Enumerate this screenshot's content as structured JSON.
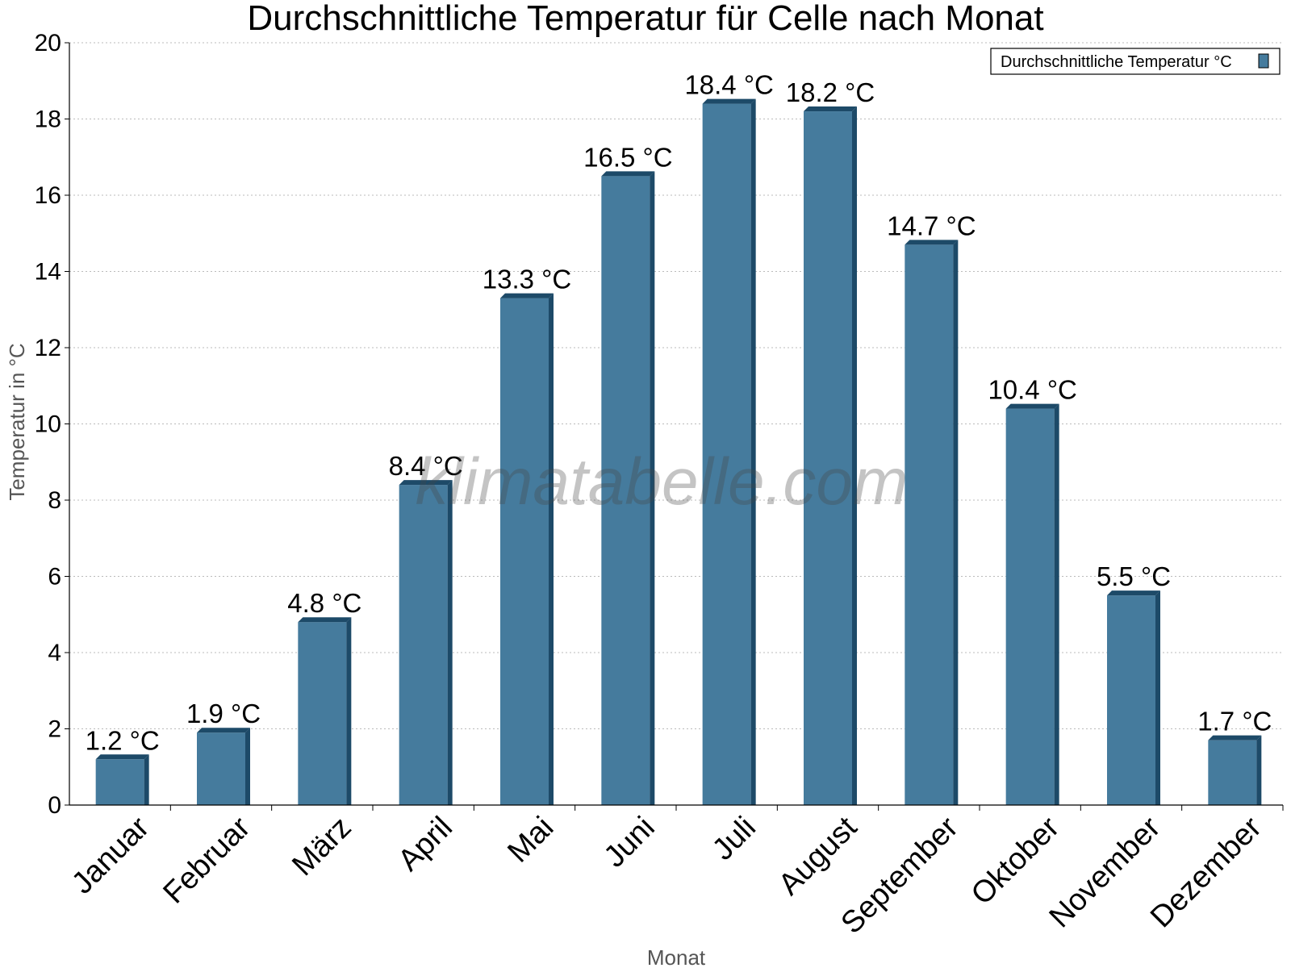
{
  "watermark": "klimatabelle.com",
  "colors": {
    "bar_front": "#457b9d",
    "bar_side": "#1d4a68",
    "bar_top": "#1d4a68",
    "grid": "#bbbbbb",
    "axis": "#000000"
  },
  "chart_data": {
    "type": "bar",
    "title": "Durchschnittliche Temperatur für Celle nach Monat",
    "xlabel": "Monat",
    "ylabel": "Temperatur in °C",
    "categories": [
      "Januar",
      "Februar",
      "März",
      "April",
      "Mai",
      "Juni",
      "Juli",
      "August",
      "September",
      "Oktober",
      "November",
      "Dezember"
    ],
    "series": [
      {
        "name": "Durchschnittliche Temperatur °C",
        "values": [
          1.2,
          1.9,
          4.8,
          8.4,
          13.3,
          16.5,
          18.4,
          18.2,
          14.7,
          10.4,
          5.5,
          1.7
        ],
        "labels": [
          "1.2 °C",
          "1.9 °C",
          "4.8 °C",
          "8.4 °C",
          "13.3 °C",
          "16.5 °C",
          "18.4 °C",
          "18.2 °C",
          "14.7 °C",
          "10.4 °C",
          "5.5 °C",
          "1.7 °C"
        ]
      }
    ],
    "ylim": [
      0,
      20
    ],
    "yticks": [
      0,
      2,
      4,
      6,
      8,
      10,
      12,
      14,
      16,
      18,
      20
    ],
    "grid": true,
    "legend_position": "top-right"
  }
}
